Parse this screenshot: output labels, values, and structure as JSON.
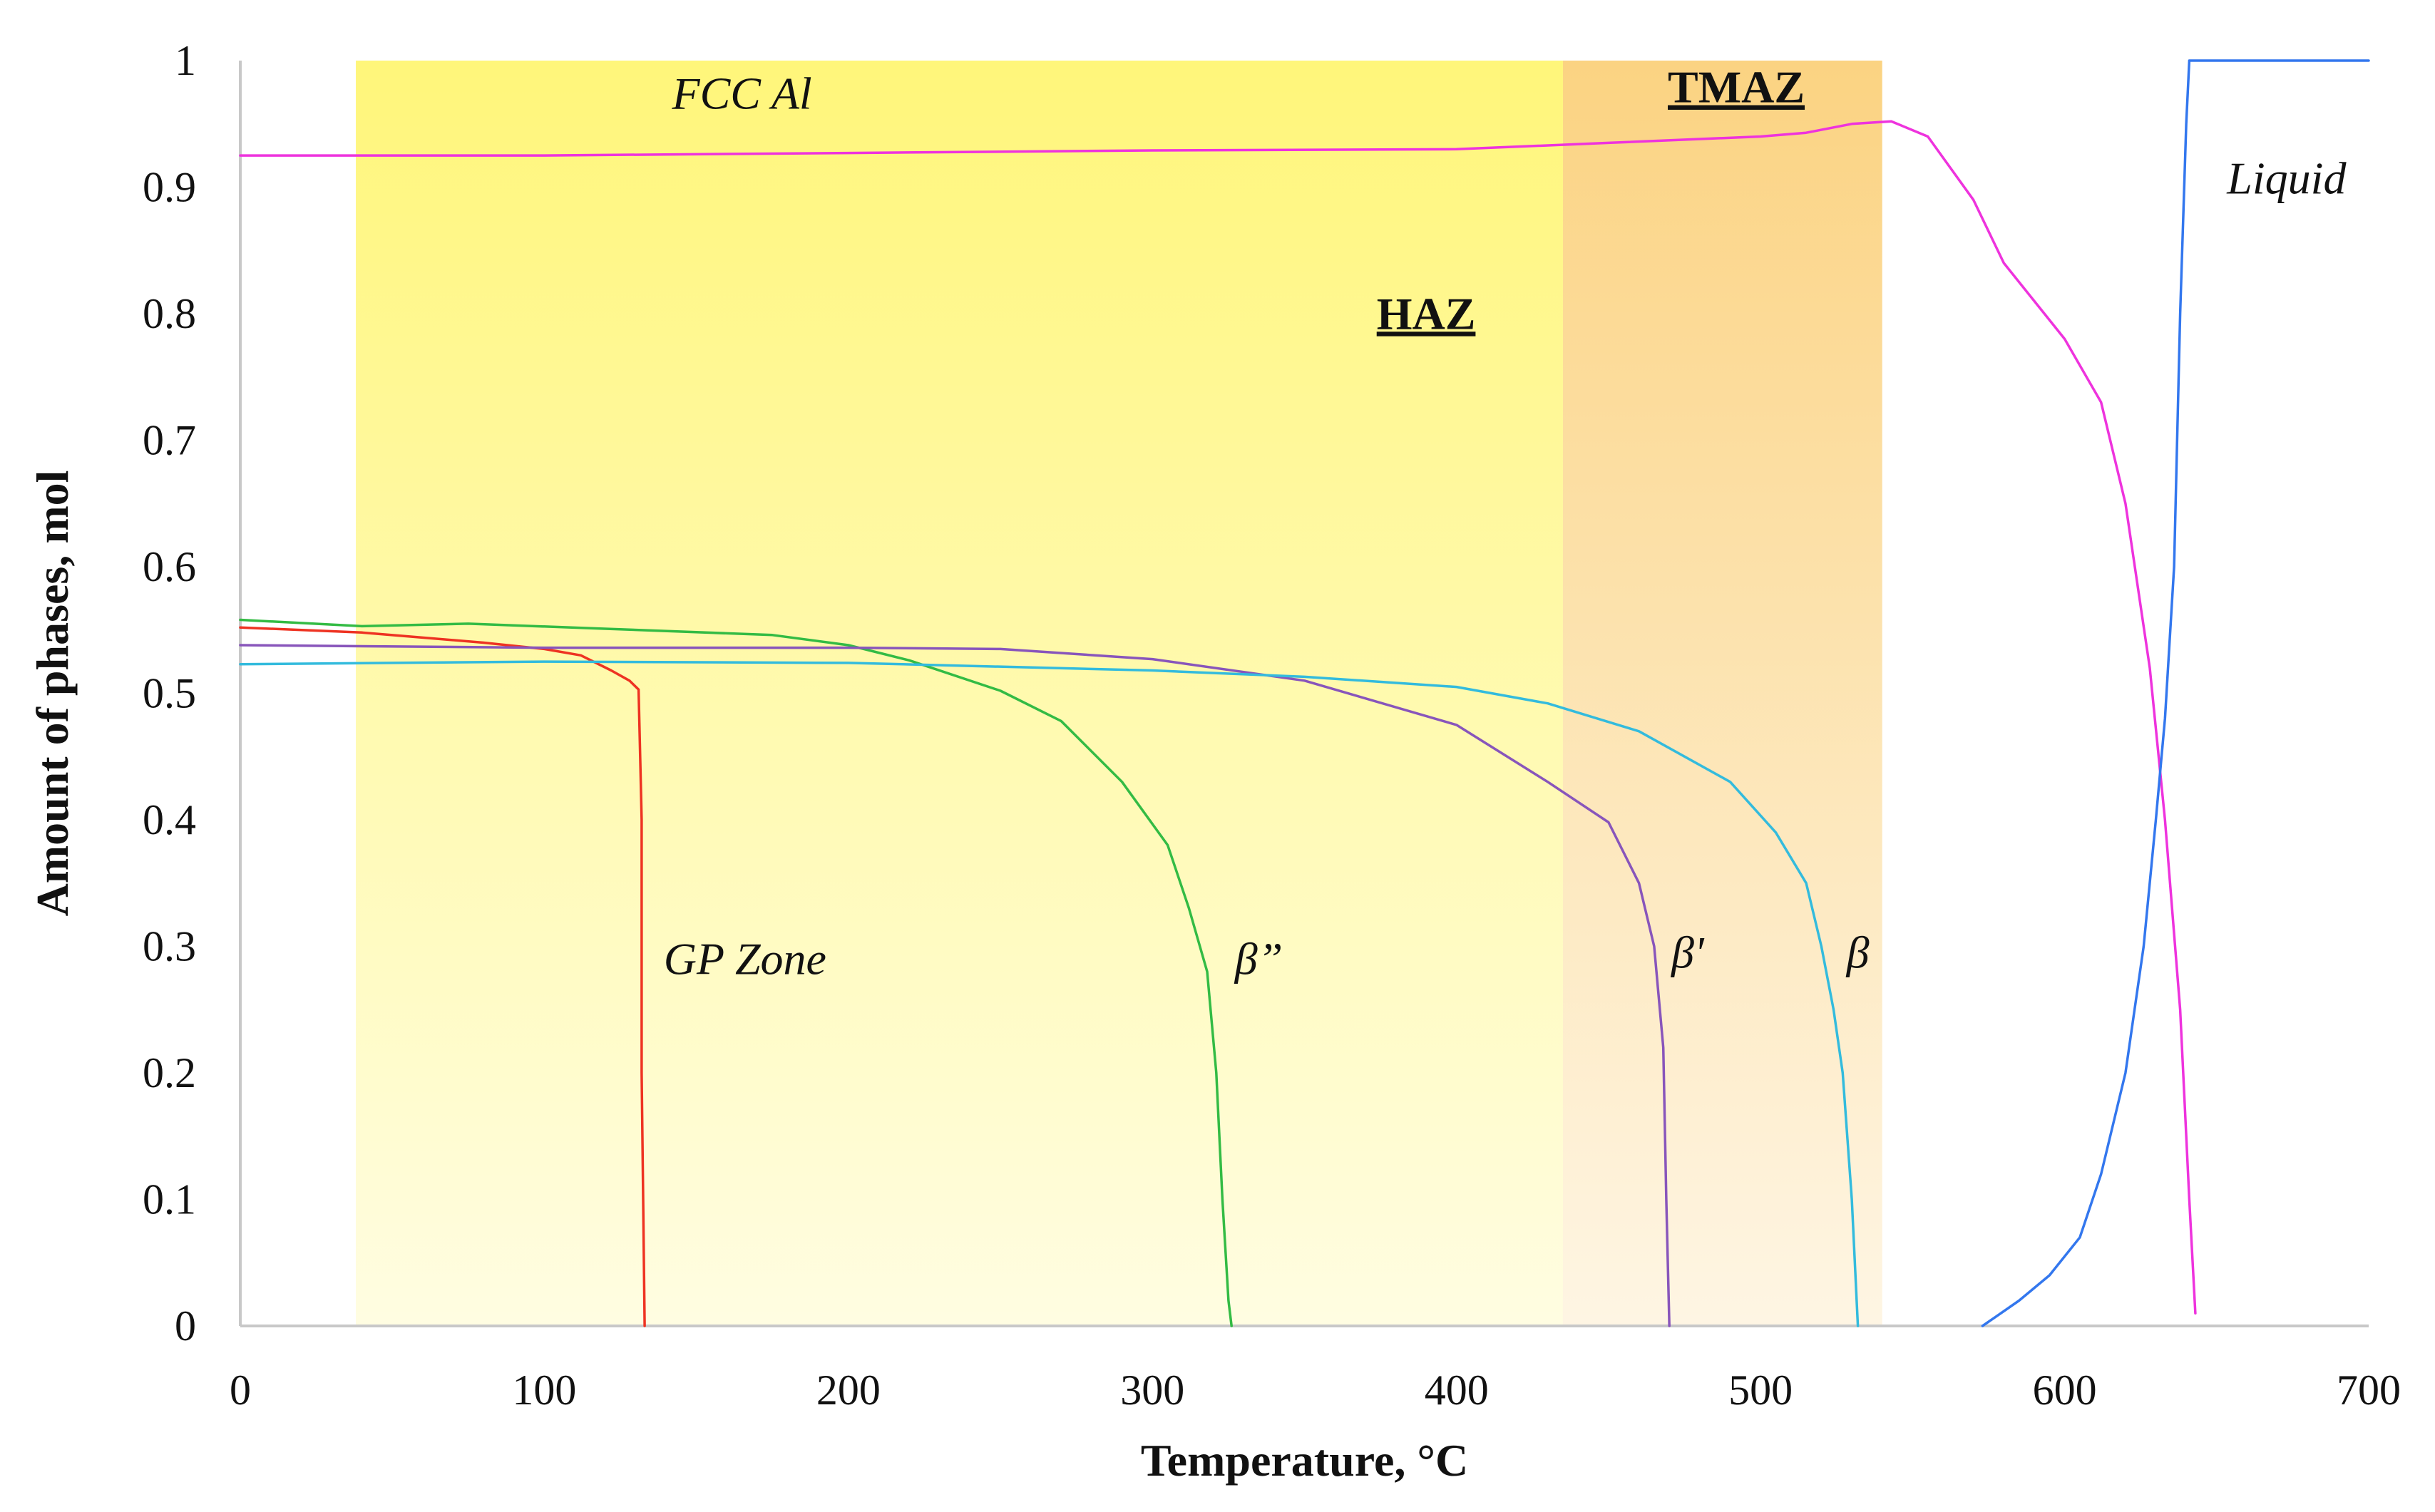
{
  "chart_data": {
    "type": "line",
    "title": "",
    "xlabel": "Temperature, °C",
    "ylabel": "Amount of phases, mol",
    "xlim": [
      0,
      700
    ],
    "ylim": [
      0,
      1
    ],
    "xticks": [
      "0",
      "100",
      "200",
      "300",
      "400",
      "500",
      "600",
      "700"
    ],
    "yticks": [
      "0",
      "0.1",
      "0.2",
      "0.3",
      "0.4",
      "0.5",
      "0.6",
      "0.7",
      "0.8",
      "0.9",
      "1"
    ],
    "grid": false,
    "regions": [
      {
        "name": "HAZ",
        "x_start": 38,
        "x_end": 435,
        "color": "#fff67a"
      },
      {
        "name": "TMAZ",
        "x_start": 435,
        "x_end": 540,
        "color": "#fbd382"
      }
    ],
    "series": [
      {
        "name": "FCC Al",
        "color": "#ee33dd",
        "points": [
          [
            0,
            0.925
          ],
          [
            100,
            0.925
          ],
          [
            200,
            0.927
          ],
          [
            300,
            0.929
          ],
          [
            400,
            0.93
          ],
          [
            450,
            0.935
          ],
          [
            500,
            0.94
          ],
          [
            515,
            0.943
          ],
          [
            530,
            0.95
          ],
          [
            543,
            0.952
          ],
          [
            555,
            0.94
          ],
          [
            570,
            0.89
          ],
          [
            580,
            0.84
          ],
          [
            600,
            0.78
          ],
          [
            612,
            0.73
          ],
          [
            620,
            0.65
          ],
          [
            628,
            0.52
          ],
          [
            633,
            0.4
          ],
          [
            638,
            0.25
          ],
          [
            641,
            0.1
          ],
          [
            643,
            0.01
          ]
        ]
      },
      {
        "name": "GP Zone",
        "color": "#ee3322",
        "points": [
          [
            0,
            0.552
          ],
          [
            40,
            0.548
          ],
          [
            80,
            0.54
          ],
          [
            100,
            0.535
          ],
          [
            112,
            0.53
          ],
          [
            122,
            0.518
          ],
          [
            128,
            0.51
          ],
          [
            131,
            0.503
          ],
          [
            132,
            0.4
          ],
          [
            132,
            0.2
          ],
          [
            132.5,
            0.1
          ],
          [
            133,
            0.0
          ]
        ]
      },
      {
        "name": "β”",
        "color": "#33bb44",
        "points": [
          [
            0,
            0.558
          ],
          [
            40,
            0.553
          ],
          [
            75,
            0.555
          ],
          [
            120,
            0.551
          ],
          [
            175,
            0.546
          ],
          [
            200,
            0.538
          ],
          [
            220,
            0.526
          ],
          [
            250,
            0.502
          ],
          [
            270,
            0.478
          ],
          [
            290,
            0.43
          ],
          [
            305,
            0.38
          ],
          [
            312,
            0.33
          ],
          [
            318,
            0.28
          ],
          [
            321,
            0.2
          ],
          [
            323,
            0.1
          ],
          [
            325,
            0.02
          ],
          [
            326,
            0.0
          ]
        ]
      },
      {
        "name": "β'",
        "color": "#8855bb",
        "points": [
          [
            0,
            0.538
          ],
          [
            100,
            0.536
          ],
          [
            200,
            0.536
          ],
          [
            250,
            0.535
          ],
          [
            300,
            0.527
          ],
          [
            350,
            0.51
          ],
          [
            400,
            0.475
          ],
          [
            430,
            0.43
          ],
          [
            450,
            0.398
          ],
          [
            460,
            0.35
          ],
          [
            465,
            0.3
          ],
          [
            468,
            0.22
          ],
          [
            469,
            0.1
          ],
          [
            470,
            0.0
          ]
        ]
      },
      {
        "name": "β",
        "color": "#33bbdd",
        "points": [
          [
            0,
            0.523
          ],
          [
            100,
            0.525
          ],
          [
            200,
            0.524
          ],
          [
            300,
            0.518
          ],
          [
            350,
            0.513
          ],
          [
            400,
            0.505
          ],
          [
            430,
            0.492
          ],
          [
            460,
            0.47
          ],
          [
            490,
            0.43
          ],
          [
            505,
            0.39
          ],
          [
            515,
            0.35
          ],
          [
            520,
            0.3
          ],
          [
            524,
            0.25
          ],
          [
            527,
            0.2
          ],
          [
            530,
            0.1
          ],
          [
            532,
            0.0
          ]
        ]
      },
      {
        "name": "Liquid",
        "color": "#3377ee",
        "points": [
          [
            573,
            0.0
          ],
          [
            585,
            0.02
          ],
          [
            595,
            0.04
          ],
          [
            605,
            0.07
          ],
          [
            612,
            0.12
          ],
          [
            620,
            0.2
          ],
          [
            626,
            0.3
          ],
          [
            630,
            0.4
          ],
          [
            633,
            0.48
          ],
          [
            636,
            0.6
          ],
          [
            638,
            0.8
          ],
          [
            640,
            0.95
          ],
          [
            641,
            1.0
          ],
          [
            700,
            1.0
          ]
        ]
      }
    ],
    "annotations": [
      {
        "text": "FCC Al",
        "x": 165,
        "y": 0.962
      },
      {
        "text": "TMAZ",
        "x": 492,
        "y": 0.967
      },
      {
        "text": "HAZ",
        "x": 390,
        "y": 0.788
      },
      {
        "text": "Liquid",
        "x": 673,
        "y": 0.895
      },
      {
        "text": "GP Zone",
        "x": 166,
        "y": 0.278
      },
      {
        "text": "β”",
        "x": 335,
        "y": 0.278
      },
      {
        "text": "β'",
        "x": 476,
        "y": 0.283
      },
      {
        "text": "β",
        "x": 532,
        "y": 0.283
      }
    ]
  }
}
